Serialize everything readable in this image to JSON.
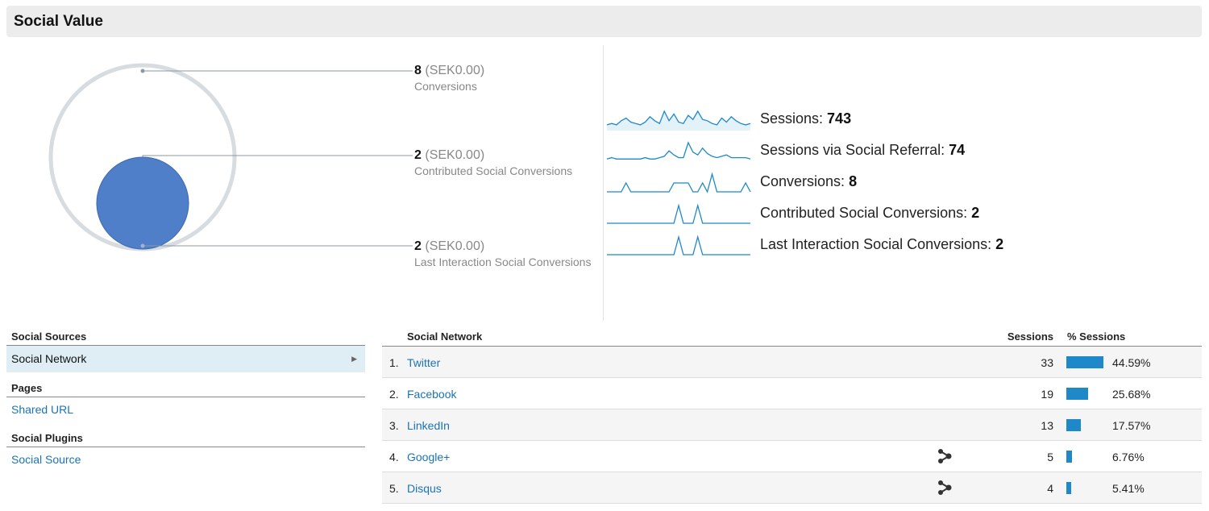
{
  "header": {
    "title": "Social Value"
  },
  "funnel": [
    {
      "value": "8",
      "amount": "(SEK0.00)",
      "label": "Conversions"
    },
    {
      "value": "2",
      "amount": "(SEK0.00)",
      "label": "Contributed Social Conversions"
    },
    {
      "value": "2",
      "amount": "(SEK0.00)",
      "label": "Last Interaction Social Conversions"
    }
  ],
  "sparklines": [
    {
      "label": "Sessions: ",
      "value": "743",
      "series": [
        3,
        4,
        3,
        6,
        8,
        5,
        4,
        3,
        5,
        9,
        6,
        4,
        13,
        6,
        11,
        5,
        4,
        10,
        7,
        13,
        7,
        6,
        4,
        3,
        8,
        5,
        9,
        6,
        4,
        3,
        4
      ]
    },
    {
      "label": "Sessions via Social Referral: ",
      "value": "74",
      "series": [
        1,
        2,
        1,
        1,
        1,
        1,
        1,
        1,
        2,
        1,
        1,
        2,
        3,
        7,
        4,
        2,
        2,
        13,
        6,
        4,
        9,
        5,
        3,
        2,
        3,
        4,
        2,
        2,
        2,
        2,
        1
      ]
    },
    {
      "label": "Conversions: ",
      "value": "8",
      "series": [
        0,
        0,
        0,
        0,
        1,
        0,
        0,
        0,
        0,
        0,
        0,
        0,
        0,
        0,
        1,
        1,
        1,
        1,
        0,
        0,
        1,
        0,
        2,
        0,
        0,
        0,
        0,
        0,
        0,
        1,
        0
      ]
    },
    {
      "label": "Contributed Social Conversions: ",
      "value": "2",
      "series": [
        0,
        0,
        0,
        0,
        0,
        0,
        0,
        0,
        0,
        0,
        0,
        0,
        0,
        0,
        0,
        1,
        0,
        0,
        0,
        1,
        0,
        0,
        0,
        0,
        0,
        0,
        0,
        0,
        0,
        0,
        0
      ]
    },
    {
      "label": "Last Interaction Social Conversions: ",
      "value": "2",
      "series": [
        0,
        0,
        0,
        0,
        0,
        0,
        0,
        0,
        0,
        0,
        0,
        0,
        0,
        0,
        0,
        1,
        0,
        0,
        0,
        1,
        0,
        0,
        0,
        0,
        0,
        0,
        0,
        0,
        0,
        0,
        0
      ]
    }
  ],
  "sidebar": {
    "social_sources": "Social Sources",
    "social_network": "Social Network",
    "pages": "Pages",
    "shared_url": "Shared URL",
    "social_plugins": "Social Plugins",
    "social_source": "Social Source"
  },
  "table": {
    "headers": {
      "network": "Social Network",
      "sessions": "Sessions",
      "pct_sessions": "% Sessions"
    },
    "rows": [
      {
        "idx": "1.",
        "name": "Twitter",
        "sessions": "33",
        "pct": "44.59%",
        "fraction": 0.4459,
        "share_icon": false
      },
      {
        "idx": "2.",
        "name": "Facebook",
        "sessions": "19",
        "pct": "25.68%",
        "fraction": 0.2568,
        "share_icon": false
      },
      {
        "idx": "3.",
        "name": "LinkedIn",
        "sessions": "13",
        "pct": "17.57%",
        "fraction": 0.1757,
        "share_icon": false
      },
      {
        "idx": "4.",
        "name": "Google+",
        "sessions": "5",
        "pct": "6.76%",
        "fraction": 0.0676,
        "share_icon": true
      },
      {
        "idx": "5.",
        "name": "Disqus",
        "sessions": "4",
        "pct": "5.41%",
        "fraction": 0.0541,
        "share_icon": true
      }
    ]
  },
  "colors": {
    "accent": "#1e88c9",
    "circle": "#4f7fc8",
    "ring": "#d7dce0",
    "link": "#1a73b5"
  }
}
